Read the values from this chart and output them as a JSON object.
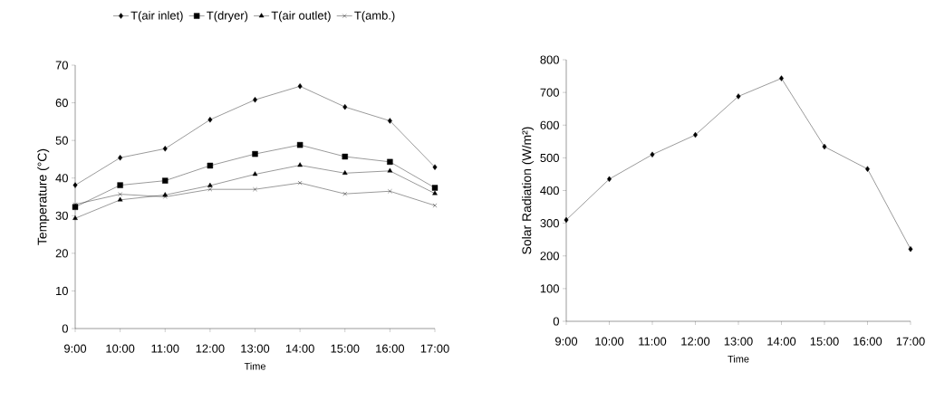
{
  "chart_data": [
    {
      "type": "line",
      "xlabel": "Time",
      "ylabel": "Temperature (°C)",
      "categories": [
        "9:00",
        "10:00",
        "11:00",
        "12:00",
        "13:00",
        "14:00",
        "15:00",
        "16:00",
        "17:00"
      ],
      "ylim": [
        0,
        70
      ],
      "yticks": [
        0,
        10,
        20,
        30,
        40,
        50,
        60,
        70
      ],
      "grid": false,
      "legend": "top",
      "series": [
        {
          "name": "T(air inlet)",
          "color": "#000000",
          "marker": "diamond",
          "values": [
            38.1,
            45.4,
            47.8,
            55.5,
            60.8,
            64.4,
            58.9,
            55.2,
            42.9
          ]
        },
        {
          "name": "T(dryer)",
          "color": "#000000",
          "marker": "square",
          "values": [
            32.3,
            38.1,
            39.3,
            43.3,
            46.4,
            48.8,
            45.7,
            44.3,
            37.4
          ]
        },
        {
          "name": "T(air outlet)",
          "color": "#000000",
          "marker": "triangle",
          "values": [
            29.3,
            34.2,
            35.5,
            38.0,
            41.0,
            43.4,
            41.3,
            41.9,
            35.9
          ]
        },
        {
          "name": "T(amb.)",
          "color": "#000000",
          "marker": "cross",
          "values": [
            33.0,
            35.7,
            35.0,
            37.0,
            37.0,
            38.7,
            35.8,
            36.5,
            32.7
          ]
        }
      ]
    },
    {
      "type": "line",
      "xlabel": "Time",
      "ylabel": "Solar Radiation (W/m²)",
      "categories": [
        "9:00",
        "10:00",
        "11:00",
        "12:00",
        "13:00",
        "14:00",
        "15:00",
        "16:00",
        "17:00"
      ],
      "ylim": [
        0,
        800
      ],
      "yticks": [
        0,
        100,
        200,
        300,
        400,
        500,
        600,
        700,
        800
      ],
      "grid": false,
      "legend": false,
      "marker": "diamond",
      "series": [
        {
          "color": "#000000",
          "values": [
            310,
            435,
            510,
            570,
            688,
            743,
            534,
            466,
            221
          ]
        }
      ]
    }
  ]
}
